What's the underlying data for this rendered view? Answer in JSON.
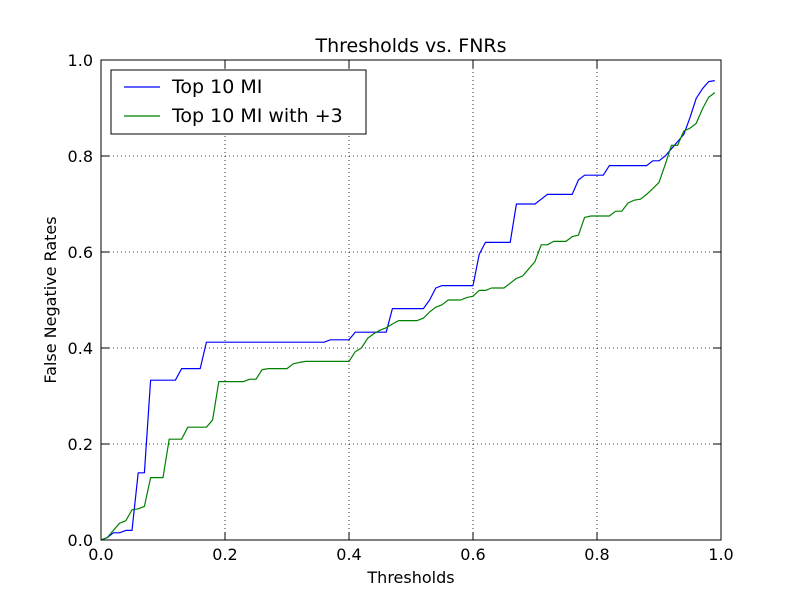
{
  "chart_data": {
    "type": "line",
    "title": "Thresholds vs. FNRs",
    "xlabel": "Thresholds",
    "ylabel": "False Negative Rates",
    "xlim": [
      0.0,
      1.0
    ],
    "ylim": [
      0.0,
      1.0
    ],
    "xticks": [
      "0.0",
      "0.2",
      "0.4",
      "0.6",
      "0.8",
      "1.0"
    ],
    "yticks": [
      "0.0",
      "0.2",
      "0.4",
      "0.6",
      "0.8",
      "1.0"
    ],
    "grid": true,
    "grid_style": "dotted",
    "legend_position": "top-left",
    "series": [
      {
        "name": "Top 10 MI",
        "color": "#0000ff",
        "x": [
          0.0,
          0.01,
          0.02,
          0.03,
          0.04,
          0.05,
          0.06,
          0.07,
          0.08,
          0.09,
          0.1,
          0.11,
          0.12,
          0.13,
          0.14,
          0.15,
          0.16,
          0.17,
          0.18,
          0.19,
          0.2,
          0.21,
          0.22,
          0.23,
          0.24,
          0.25,
          0.26,
          0.27,
          0.28,
          0.29,
          0.3,
          0.31,
          0.32,
          0.33,
          0.34,
          0.35,
          0.36,
          0.37,
          0.38,
          0.39,
          0.4,
          0.41,
          0.42,
          0.43,
          0.44,
          0.45,
          0.46,
          0.47,
          0.48,
          0.49,
          0.5,
          0.51,
          0.52,
          0.53,
          0.54,
          0.55,
          0.56,
          0.57,
          0.58,
          0.59,
          0.6,
          0.61,
          0.62,
          0.63,
          0.64,
          0.65,
          0.66,
          0.67,
          0.68,
          0.69,
          0.7,
          0.71,
          0.72,
          0.73,
          0.74,
          0.75,
          0.76,
          0.77,
          0.78,
          0.79,
          0.8,
          0.81,
          0.82,
          0.83,
          0.84,
          0.85,
          0.86,
          0.87,
          0.88,
          0.89,
          0.9,
          0.91,
          0.92,
          0.93,
          0.94,
          0.95,
          0.96,
          0.97,
          0.98,
          0.99
        ],
        "y": [
          0.0,
          0.005,
          0.015,
          0.015,
          0.02,
          0.02,
          0.14,
          0.14,
          0.333,
          0.333,
          0.333,
          0.333,
          0.333,
          0.357,
          0.357,
          0.357,
          0.357,
          0.412,
          0.412,
          0.412,
          0.412,
          0.412,
          0.412,
          0.412,
          0.412,
          0.412,
          0.412,
          0.412,
          0.412,
          0.412,
          0.412,
          0.412,
          0.412,
          0.412,
          0.412,
          0.412,
          0.412,
          0.417,
          0.417,
          0.417,
          0.417,
          0.433,
          0.433,
          0.433,
          0.433,
          0.433,
          0.433,
          0.482,
          0.482,
          0.482,
          0.482,
          0.482,
          0.482,
          0.5,
          0.525,
          0.53,
          0.53,
          0.53,
          0.53,
          0.53,
          0.53,
          0.595,
          0.62,
          0.62,
          0.62,
          0.62,
          0.62,
          0.7,
          0.7,
          0.7,
          0.7,
          0.71,
          0.72,
          0.72,
          0.72,
          0.72,
          0.72,
          0.75,
          0.76,
          0.76,
          0.76,
          0.76,
          0.78,
          0.78,
          0.78,
          0.78,
          0.78,
          0.78,
          0.78,
          0.79,
          0.79,
          0.8,
          0.815,
          0.83,
          0.845,
          0.88,
          0.92,
          0.94,
          0.955,
          0.957
        ]
      },
      {
        "name": "Top 10 MI with +3",
        "color": "#008000",
        "x": [
          0.0,
          0.01,
          0.02,
          0.03,
          0.04,
          0.05,
          0.06,
          0.07,
          0.08,
          0.09,
          0.1,
          0.11,
          0.12,
          0.13,
          0.14,
          0.15,
          0.16,
          0.17,
          0.18,
          0.19,
          0.2,
          0.21,
          0.22,
          0.23,
          0.24,
          0.25,
          0.26,
          0.27,
          0.28,
          0.29,
          0.3,
          0.31,
          0.32,
          0.33,
          0.34,
          0.35,
          0.36,
          0.37,
          0.38,
          0.39,
          0.4,
          0.41,
          0.42,
          0.43,
          0.44,
          0.45,
          0.46,
          0.47,
          0.48,
          0.49,
          0.5,
          0.51,
          0.52,
          0.53,
          0.54,
          0.55,
          0.56,
          0.57,
          0.58,
          0.59,
          0.6,
          0.61,
          0.62,
          0.63,
          0.64,
          0.65,
          0.66,
          0.67,
          0.68,
          0.69,
          0.7,
          0.71,
          0.72,
          0.73,
          0.74,
          0.75,
          0.76,
          0.77,
          0.78,
          0.79,
          0.8,
          0.81,
          0.82,
          0.83,
          0.84,
          0.85,
          0.86,
          0.87,
          0.88,
          0.89,
          0.9,
          0.91,
          0.92,
          0.93,
          0.94,
          0.95,
          0.96,
          0.97,
          0.98,
          0.99
        ],
        "y": [
          0.0,
          0.005,
          0.02,
          0.035,
          0.04,
          0.063,
          0.065,
          0.07,
          0.13,
          0.13,
          0.13,
          0.21,
          0.21,
          0.21,
          0.235,
          0.235,
          0.235,
          0.235,
          0.25,
          0.33,
          0.33,
          0.33,
          0.33,
          0.33,
          0.335,
          0.335,
          0.355,
          0.357,
          0.357,
          0.357,
          0.357,
          0.367,
          0.37,
          0.372,
          0.372,
          0.372,
          0.372,
          0.372,
          0.372,
          0.372,
          0.372,
          0.392,
          0.4,
          0.42,
          0.43,
          0.437,
          0.442,
          0.45,
          0.457,
          0.457,
          0.457,
          0.457,
          0.462,
          0.475,
          0.485,
          0.49,
          0.5,
          0.5,
          0.5,
          0.505,
          0.508,
          0.52,
          0.52,
          0.525,
          0.525,
          0.525,
          0.535,
          0.545,
          0.55,
          0.565,
          0.58,
          0.615,
          0.615,
          0.622,
          0.622,
          0.622,
          0.632,
          0.635,
          0.672,
          0.675,
          0.675,
          0.675,
          0.675,
          0.685,
          0.685,
          0.702,
          0.708,
          0.71,
          0.72,
          0.732,
          0.745,
          0.782,
          0.822,
          0.822,
          0.852,
          0.858,
          0.868,
          0.898,
          0.922,
          0.932
        ]
      }
    ]
  }
}
